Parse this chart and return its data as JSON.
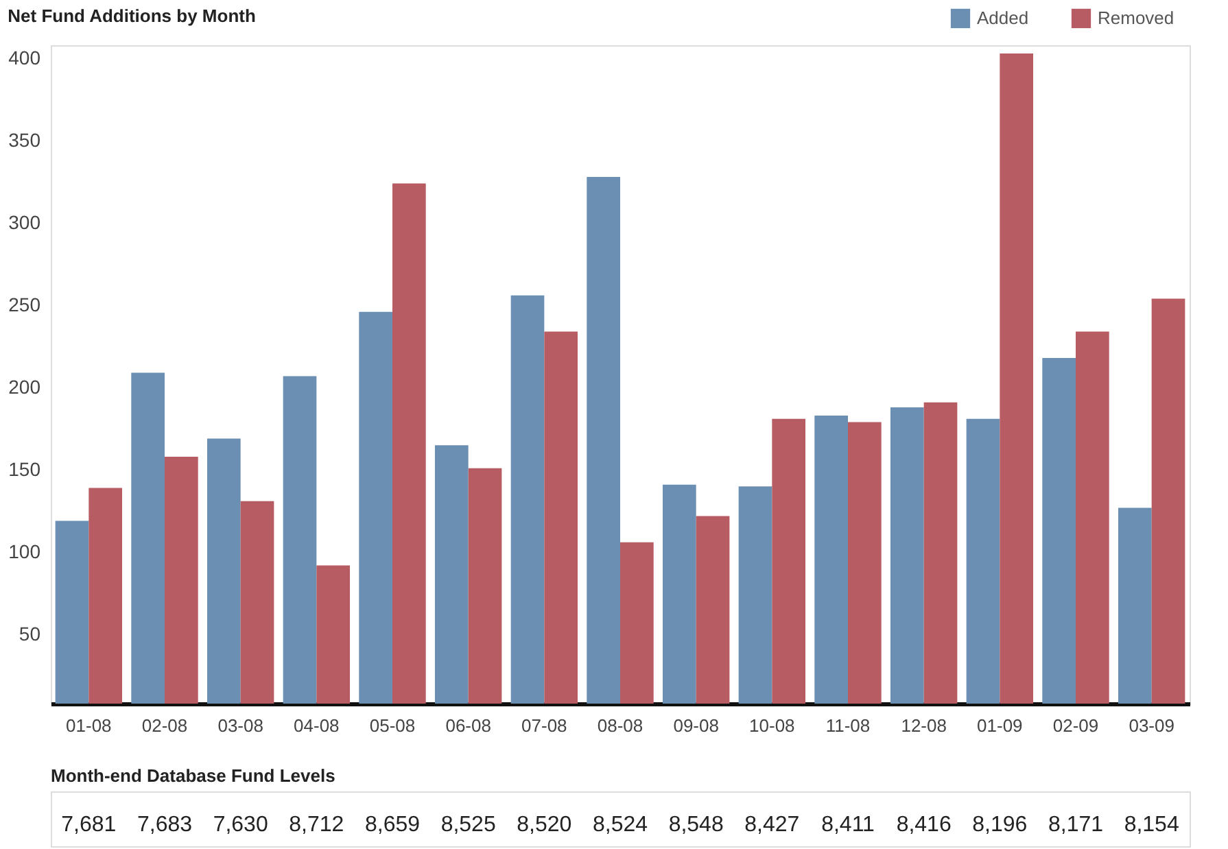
{
  "chart_data": {
    "type": "bar",
    "title": "Net Fund Additions by Month",
    "categories": [
      "01-08",
      "02-08",
      "03-08",
      "04-08",
      "05-08",
      "06-08",
      "07-08",
      "08-08",
      "09-08",
      "10-08",
      "11-08",
      "12-08",
      "01-09",
      "02-09",
      "03-09"
    ],
    "series": [
      {
        "name": "Added",
        "color": "#6b8fb3",
        "values": [
          119,
          209,
          169,
          207,
          246,
          165,
          256,
          328,
          141,
          140,
          183,
          188,
          181,
          218,
          127
        ]
      },
      {
        "name": "Removed",
        "color": "#b85c63",
        "values": [
          139,
          158,
          131,
          92,
          324,
          151,
          234,
          106,
          122,
          181,
          179,
          191,
          403,
          234,
          254
        ]
      }
    ],
    "ylim": [
      8,
      408
    ],
    "yticks": [
      50,
      100,
      150,
      200,
      250,
      300,
      350,
      400
    ],
    "grid": false,
    "legend": "top right",
    "annotations": [
      "Month-end Database Fund Levels",
      "7,681",
      "7,683",
      "7,630",
      "8,712",
      "8,659",
      "8,525",
      "8,520",
      "8,524",
      "8,548",
      "8,427",
      "8,411",
      "8,416",
      "8,196",
      "8,171",
      "8,154"
    ]
  }
}
